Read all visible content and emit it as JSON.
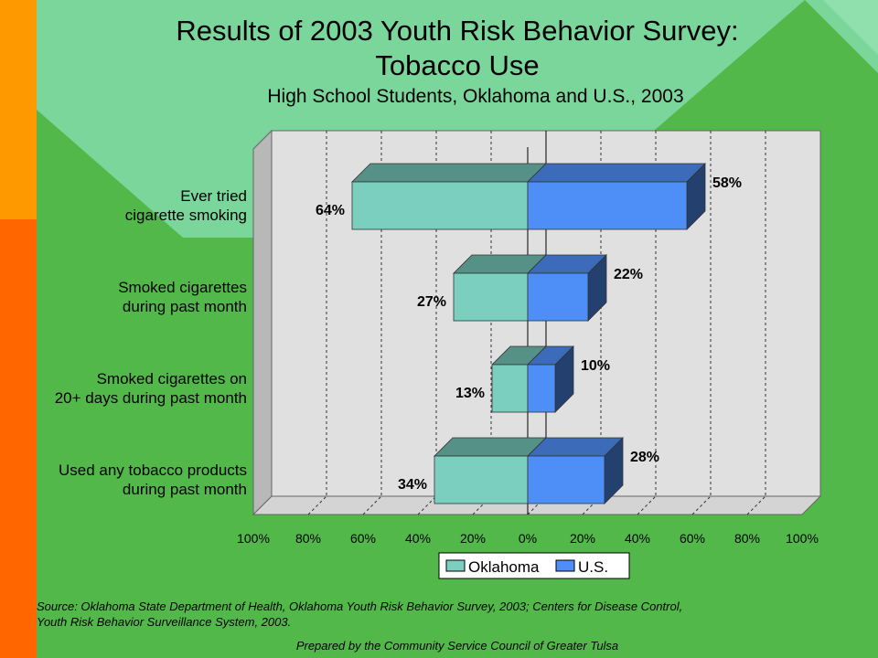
{
  "title": "Results of 2003 Youth Risk Behavior Survey:",
  "title2": "Tobacco Use",
  "subtitle": "High School Students, Oklahoma and U.S., 2003",
  "chart_data": {
    "type": "bar",
    "orientation": "horizontal",
    "layout": "back-to-back (Oklahoma extends left, U.S. extends right)",
    "categories": [
      [
        "Ever tried",
        "cigarette smoking"
      ],
      [
        "Smoked cigarettes",
        "during past month"
      ],
      [
        "Smoked cigarettes on",
        "20+ days during past month"
      ],
      [
        "Used any tobacco products",
        "during past month"
      ]
    ],
    "series": [
      {
        "name": "Oklahoma",
        "values": [
          64,
          27,
          13,
          34
        ],
        "labels": [
          "64%",
          "27%",
          "13%",
          "34%"
        ],
        "color": "#7acfbf"
      },
      {
        "name": "U.S.",
        "values": [
          58,
          22,
          10,
          28
        ],
        "labels": [
          "58%",
          "22%",
          "10%",
          "28%"
        ],
        "color": "#4e8ef7"
      }
    ],
    "xlim": [
      -100,
      100
    ],
    "x_ticks": [
      "100%",
      "80%",
      "60%",
      "40%",
      "20%",
      "0%",
      "20%",
      "40%",
      "60%",
      "80%",
      "100%"
    ],
    "grid": true,
    "legend_position": "bottom"
  },
  "source": {
    "line1": "Source: Oklahoma State Department of Health, Oklahoma Youth Risk Behavior Survey, 2003; Centers for Disease Control,",
    "line2": "Youth Risk Behavior Surveillance System, 2003.",
    "prepared": "Prepared by the Community Service Council of Greater Tulsa"
  },
  "colors": {
    "orange_bar_top": "#ff9900",
    "orange_bar_bottom": "#ff6600",
    "background_green": "#52b84a",
    "background_light": "#7ad69b",
    "plot_back": "#e0e0e0"
  }
}
